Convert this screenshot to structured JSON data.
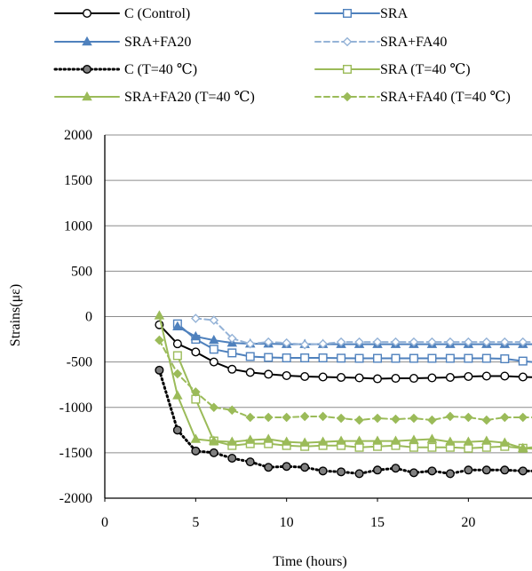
{
  "chart_data": {
    "type": "line",
    "title": "",
    "xlabel": "Time (hours)",
    "ylabel": "Strains(με)",
    "xlim": [
      0,
      23.5
    ],
    "ylim": [
      -2000,
      2000
    ],
    "x_ticks": [
      "0",
      "5",
      "10",
      "15",
      "20"
    ],
    "y_ticks": [
      "2000",
      "1500",
      "1000",
      "500",
      "0",
      "-500",
      "-1000",
      "-1500",
      "-2000"
    ],
    "grid": "horizontal",
    "legend_position": "top",
    "series": [
      {
        "name": "C (Control)",
        "color": "#000000",
        "line": "solid",
        "marker": "circle-open",
        "x": [
          3,
          4,
          5,
          6,
          7,
          8,
          9,
          10,
          11,
          12,
          13,
          14,
          15,
          16,
          17,
          18,
          19,
          20,
          21,
          22,
          23,
          24
        ],
        "y": [
          -90,
          -300,
          -390,
          -500,
          -580,
          -615,
          -635,
          -650,
          -660,
          -665,
          -670,
          -675,
          -685,
          -680,
          -680,
          -675,
          -670,
          -660,
          -655,
          -655,
          -665,
          -670
        ]
      },
      {
        "name": "SRA",
        "color": "#4f81bd",
        "line": "solid",
        "marker": "square-open",
        "x": [
          4,
          5,
          6,
          7,
          8,
          9,
          10,
          11,
          12,
          13,
          14,
          15,
          16,
          17,
          18,
          19,
          20,
          21,
          22,
          23,
          24
        ],
        "y": [
          -80,
          -250,
          -360,
          -400,
          -440,
          -450,
          -455,
          -455,
          -455,
          -458,
          -460,
          -460,
          -460,
          -460,
          -460,
          -460,
          -460,
          -460,
          -465,
          -490,
          -510
        ]
      },
      {
        "name": "SRA+FA20",
        "color": "#4f81bd",
        "line": "solid",
        "marker": "triangle",
        "x": [
          4,
          5,
          6,
          7,
          8,
          9,
          10,
          11,
          12,
          13,
          14,
          15,
          16,
          17,
          18,
          19,
          20,
          21,
          22,
          23,
          24
        ],
        "y": [
          -110,
          -220,
          -260,
          -290,
          -300,
          -300,
          -305,
          -305,
          -305,
          -305,
          -305,
          -305,
          -305,
          -305,
          -305,
          -305,
          -305,
          -305,
          -305,
          -305,
          -305
        ]
      },
      {
        "name": "SRA+FA40",
        "color": "#95b3d7",
        "line": "dashed",
        "marker": "diamond-open",
        "x": [
          5,
          6,
          7,
          8,
          9,
          10,
          11,
          12,
          13,
          14,
          15,
          16,
          17,
          18,
          19,
          20,
          21,
          22,
          23,
          24
        ],
        "y": [
          -20,
          -40,
          -240,
          -300,
          -280,
          -290,
          -310,
          -300,
          -280,
          -280,
          -280,
          -280,
          -280,
          -280,
          -280,
          -280,
          -280,
          -280,
          -280,
          -280
        ]
      },
      {
        "name": "C (T=40 ℃)",
        "color": "#000000",
        "line": "dotted",
        "marker": "circle-filled",
        "x": [
          3,
          4,
          5,
          6,
          7,
          8,
          9,
          10,
          11,
          12,
          13,
          14,
          15,
          16,
          17,
          18,
          19,
          20,
          21,
          22,
          23,
          24
        ],
        "y": [
          -590,
          -1250,
          -1480,
          -1500,
          -1560,
          -1600,
          -1660,
          -1650,
          -1660,
          -1700,
          -1710,
          -1730,
          -1690,
          -1670,
          -1720,
          -1700,
          -1730,
          -1690,
          -1690,
          -1690,
          -1700,
          -1700
        ]
      },
      {
        "name": "SRA (T=40 ℃)",
        "color": "#9bbb59",
        "line": "solid",
        "marker": "square-open",
        "x": [
          4,
          5,
          6,
          7,
          8,
          9,
          10,
          11,
          12,
          13,
          14,
          15,
          16,
          17,
          18,
          19,
          20,
          21,
          22,
          23,
          24
        ],
        "y": [
          -430,
          -910,
          -1370,
          -1420,
          -1400,
          -1400,
          -1420,
          -1430,
          -1420,
          -1420,
          -1440,
          -1430,
          -1420,
          -1440,
          -1440,
          -1440,
          -1450,
          -1440,
          -1430,
          -1450,
          -1460
        ]
      },
      {
        "name": "SRA+FA20 (T=40 ℃)",
        "color": "#9bbb59",
        "line": "solid",
        "marker": "triangle",
        "x": [
          3,
          4,
          5,
          6,
          7,
          8,
          9,
          10,
          11,
          12,
          13,
          14,
          15,
          16,
          17,
          18,
          19,
          20,
          21,
          22,
          23,
          24
        ],
        "y": [
          10,
          -870,
          -1350,
          -1370,
          -1380,
          -1360,
          -1350,
          -1380,
          -1390,
          -1380,
          -1370,
          -1370,
          -1370,
          -1370,
          -1360,
          -1350,
          -1380,
          -1380,
          -1370,
          -1390,
          -1450,
          -1430
        ]
      },
      {
        "name": "SRA+FA40 (T=40 ℃)",
        "color": "#9bbb59",
        "line": "dashed",
        "marker": "diamond-filled",
        "x": [
          3,
          4,
          5,
          6,
          7,
          8,
          9,
          10,
          11,
          12,
          13,
          14,
          15,
          16,
          17,
          18,
          19,
          20,
          21,
          22,
          23,
          24
        ],
        "y": [
          -260,
          -630,
          -830,
          -1000,
          -1030,
          -1110,
          -1110,
          -1110,
          -1100,
          -1100,
          -1120,
          -1140,
          -1120,
          -1130,
          -1120,
          -1140,
          -1100,
          -1110,
          -1140,
          -1110,
          -1110,
          -1110
        ]
      }
    ]
  }
}
